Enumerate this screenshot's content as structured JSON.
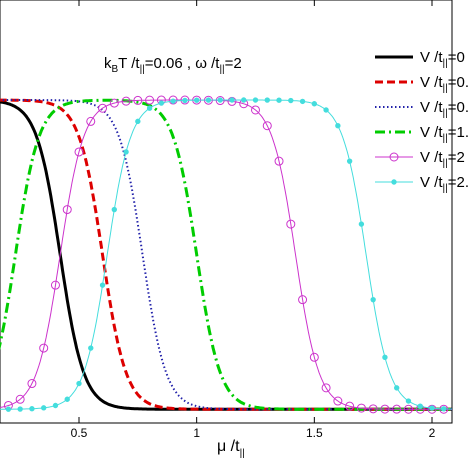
{
  "chart_data": {
    "type": "line",
    "title": "",
    "annotation": {
      "prefix": "k",
      "sub1": "B",
      "mid": "T /t",
      "sub2": "||",
      "val1": "=0.06  ,  ω /t",
      "sub3": "||",
      "val2": "=2"
    },
    "xlabel": {
      "main": "μ /t",
      "sub": "||"
    },
    "ylabel": "",
    "xlim": [
      0,
      2.2
    ],
    "ylim": [
      0,
      1.1
    ],
    "x_ticks": [
      "0.5",
      "1",
      "1.5",
      "2"
    ],
    "x_tick_values": [
      0.5,
      1,
      1.5,
      2
    ],
    "legend_position": "top-right",
    "grid": false,
    "series": [
      {
        "name": "V /t||=0",
        "label_main": "V /t",
        "label_sub": "||",
        "label_tail": "=0",
        "color": "#000000",
        "dash": "",
        "width": 3,
        "marker": "none",
        "mu0": 0.42,
        "w": 0.05
      },
      {
        "name": "V /t||=0.",
        "label_main": "V /t",
        "label_sub": "||",
        "label_tail": "=0.",
        "color": "#dd0000",
        "dash": "8,4",
        "width": 3,
        "marker": "none",
        "mu0": 0.6,
        "w": 0.05
      },
      {
        "name": "V /t||=0.",
        "label_main": "V /t",
        "label_sub": "||",
        "label_tail": "=0.",
        "color": "#2222aa",
        "dash": "1.5,2.5",
        "width": 2,
        "marker": "none",
        "mu0": 0.77,
        "w": 0.05
      },
      {
        "name": "V /t||=1.",
        "label_main": "V /t",
        "label_sub": "||",
        "label_tail": "=1.",
        "color": "#00cc00",
        "dash": "10,4,2,4",
        "width": 3,
        "marker": "none",
        "rise": 0.23,
        "fall": 1.0,
        "w": 0.05
      },
      {
        "name": "V /t||=2",
        "label_main": "V /t",
        "label_sub": "||",
        "label_tail": "=2",
        "color": "#cc33cc",
        "dash": "",
        "width": 1,
        "marker": "circle",
        "rise": 0.42,
        "fall": 1.42,
        "w": 0.05
      },
      {
        "name": "V /t||=2.",
        "label_main": "V /t",
        "label_sub": "||",
        "label_tail": "=2.",
        "color": "#44dddd",
        "dash": "",
        "width": 1,
        "marker": "star",
        "rise": 0.62,
        "fall": 1.72,
        "w": 0.05
      }
    ]
  }
}
